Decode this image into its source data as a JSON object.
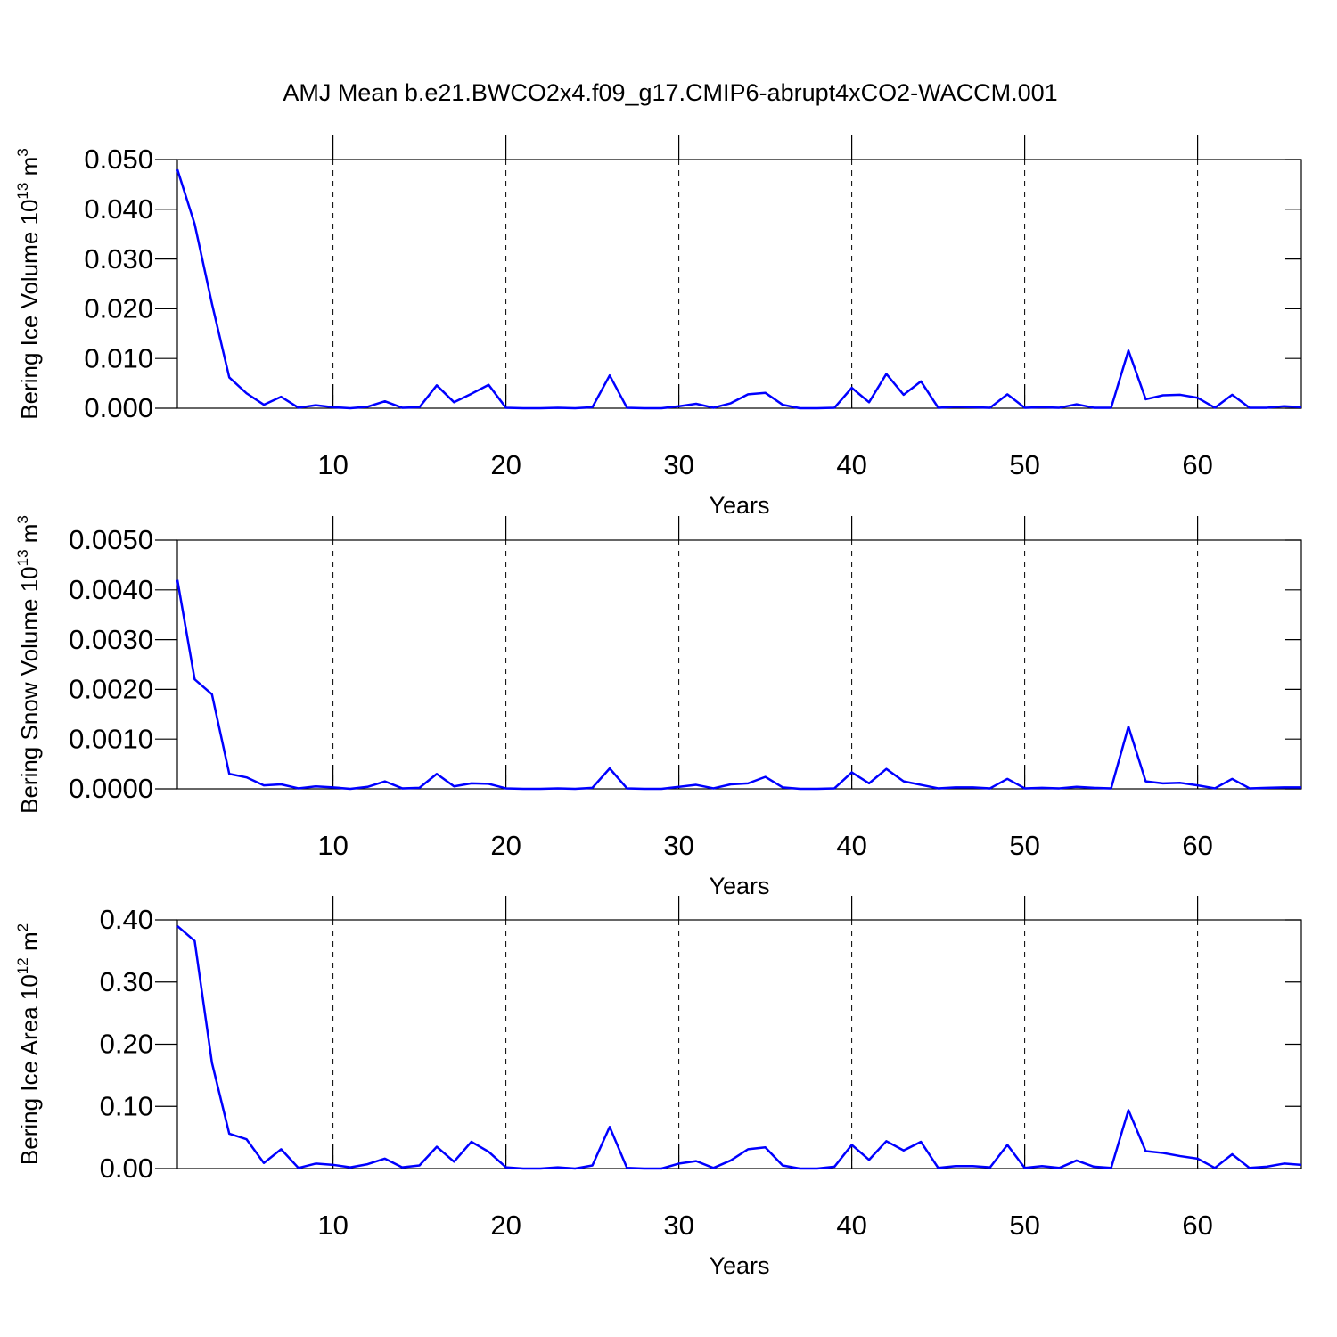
{
  "title": "AMJ Mean b.e21.BWCO2x4.f09_g17.CMIP6-abrupt4xCO2-WACCM.001",
  "chart_data": [
    {
      "type": "line",
      "x": [
        1,
        2,
        3,
        4,
        5,
        6,
        7,
        8,
        9,
        10,
        11,
        12,
        13,
        14,
        15,
        16,
        17,
        18,
        19,
        20,
        21,
        22,
        23,
        24,
        25,
        26,
        27,
        28,
        29,
        30,
        31,
        32,
        33,
        34,
        35,
        36,
        37,
        38,
        39,
        40,
        41,
        42,
        43,
        44,
        45,
        46,
        47,
        48,
        49,
        50,
        51,
        52,
        53,
        54,
        55,
        56,
        57,
        58,
        59,
        60,
        61,
        62,
        63,
        64,
        65,
        66
      ],
      "values": [
        0.048,
        0.037,
        0.021,
        0.0062,
        0.003,
        0.0007,
        0.0023,
        0.0001,
        0.0006,
        0.0002,
        0.0,
        0.0003,
        0.0014,
        0.0001,
        0.0002,
        0.0046,
        0.0012,
        0.0029,
        0.0047,
        0.0001,
        0.0,
        0.0,
        0.0001,
        0.0,
        0.0002,
        0.0066,
        0.0001,
        0.0,
        0.0,
        0.0004,
        0.0009,
        0.0001,
        0.001,
        0.0028,
        0.0031,
        0.0007,
        0.0,
        0.0,
        0.0001,
        0.0041,
        0.0012,
        0.0069,
        0.0027,
        0.0054,
        0.0001,
        0.0003,
        0.0002,
        0.0001,
        0.0028,
        0.0001,
        0.0002,
        0.0001,
        0.0008,
        0.0001,
        0.0001,
        0.0116,
        0.0018,
        0.0026,
        0.0027,
        0.0021,
        0.0001,
        0.0027,
        0.0001,
        0.0001,
        0.0004,
        0.0002
      ],
      "color": "#0000ff",
      "xlim": [
        1,
        66
      ],
      "xticks": [
        10,
        20,
        30,
        40,
        50,
        60
      ],
      "xlabel": "Years",
      "ylabel": {
        "text": "Bering Ice Volume 10",
        "exponent": "13",
        "unit": " m",
        "unit_exponent": "3"
      },
      "ylim": [
        0,
        0.05
      ],
      "yticks": [
        {
          "value": 0,
          "label": "0.000"
        },
        {
          "value": 0.01,
          "label": "0.010"
        },
        {
          "value": 0.02,
          "label": "0.020"
        },
        {
          "value": 0.03,
          "label": "0.030"
        },
        {
          "value": 0.04,
          "label": "0.040"
        },
        {
          "value": 0.05,
          "label": "0.050"
        }
      ],
      "grid": true
    },
    {
      "type": "line",
      "x": [
        1,
        2,
        3,
        4,
        5,
        6,
        7,
        8,
        9,
        10,
        11,
        12,
        13,
        14,
        15,
        16,
        17,
        18,
        19,
        20,
        21,
        22,
        23,
        24,
        25,
        26,
        27,
        28,
        29,
        30,
        31,
        32,
        33,
        34,
        35,
        36,
        37,
        38,
        39,
        40,
        41,
        42,
        43,
        44,
        45,
        46,
        47,
        48,
        49,
        50,
        51,
        52,
        53,
        54,
        55,
        56,
        57,
        58,
        59,
        60,
        61,
        62,
        63,
        64,
        65,
        66
      ],
      "values": [
        0.0042,
        0.0022,
        0.0019,
        0.0003,
        0.00023,
        7e-05,
        9e-05,
        1e-05,
        5e-05,
        3e-05,
        0.0,
        4e-05,
        0.00015,
        1e-05,
        2e-05,
        0.0003,
        5e-05,
        0.00011,
        0.0001,
        1e-05,
        0.0,
        0.0,
        1e-05,
        0.0,
        2e-05,
        0.00041,
        1e-05,
        0.0,
        0.0,
        4e-05,
        8e-05,
        1e-05,
        9e-05,
        0.00011,
        0.00024,
        3e-05,
        0.0,
        0.0,
        1e-05,
        0.00033,
        0.00011,
        0.0004,
        0.00015,
        8e-05,
        1e-05,
        3e-05,
        3e-05,
        1e-05,
        0.0002,
        1e-05,
        2e-05,
        1e-05,
        4e-05,
        2e-05,
        1e-05,
        0.00125,
        0.00015,
        0.00011,
        0.00012,
        7e-05,
        1e-05,
        0.0002,
        1e-05,
        2e-05,
        3e-05,
        3e-05
      ],
      "color": "#0000ff",
      "xlim": [
        1,
        66
      ],
      "xticks": [
        10,
        20,
        30,
        40,
        50,
        60
      ],
      "xlabel": "Years",
      "ylabel": {
        "text": "Bering Snow Volume 10",
        "exponent": "13",
        "unit": " m",
        "unit_exponent": "3"
      },
      "ylim": [
        0,
        0.005
      ],
      "yticks": [
        {
          "value": 0,
          "label": "0.0000"
        },
        {
          "value": 0.001,
          "label": "0.0010"
        },
        {
          "value": 0.002,
          "label": "0.0020"
        },
        {
          "value": 0.003,
          "label": "0.0030"
        },
        {
          "value": 0.004,
          "label": "0.0040"
        },
        {
          "value": 0.005,
          "label": "0.0050"
        }
      ],
      "grid": true
    },
    {
      "type": "line",
      "x": [
        1,
        2,
        3,
        4,
        5,
        6,
        7,
        8,
        9,
        10,
        11,
        12,
        13,
        14,
        15,
        16,
        17,
        18,
        19,
        20,
        21,
        22,
        23,
        24,
        25,
        26,
        27,
        28,
        29,
        30,
        31,
        32,
        33,
        34,
        35,
        36,
        37,
        38,
        39,
        40,
        41,
        42,
        43,
        44,
        45,
        46,
        47,
        48,
        49,
        50,
        51,
        52,
        53,
        54,
        55,
        56,
        57,
        58,
        59,
        60,
        61,
        62,
        63,
        64,
        65,
        66
      ],
      "values": [
        0.39,
        0.366,
        0.17,
        0.056,
        0.047,
        0.009,
        0.031,
        0.001,
        0.008,
        0.006,
        0.002,
        0.007,
        0.016,
        0.002,
        0.005,
        0.035,
        0.011,
        0.043,
        0.027,
        0.002,
        0.0,
        0.0,
        0.002,
        0.0,
        0.005,
        0.067,
        0.001,
        0.0,
        0.0,
        0.008,
        0.012,
        0.001,
        0.013,
        0.031,
        0.034,
        0.005,
        0.0,
        0.0,
        0.003,
        0.038,
        0.014,
        0.044,
        0.029,
        0.043,
        0.001,
        0.004,
        0.004,
        0.002,
        0.038,
        0.001,
        0.004,
        0.001,
        0.013,
        0.003,
        0.001,
        0.094,
        0.028,
        0.025,
        0.02,
        0.016,
        0.001,
        0.023,
        0.001,
        0.003,
        0.008,
        0.006
      ],
      "color": "#0000ff",
      "xlim": [
        1,
        66
      ],
      "xticks": [
        10,
        20,
        30,
        40,
        50,
        60
      ],
      "xlabel": "Years",
      "ylabel": {
        "text": "Bering Ice Area 10",
        "exponent": "12",
        "unit": " m",
        "unit_exponent": "2"
      },
      "ylim": [
        0,
        0.4
      ],
      "yticks": [
        {
          "value": 0,
          "label": "0.00"
        },
        {
          "value": 0.1,
          "label": "0.10"
        },
        {
          "value": 0.2,
          "label": "0.20"
        },
        {
          "value": 0.3,
          "label": "0.30"
        },
        {
          "value": 0.4,
          "label": "0.40"
        }
      ],
      "grid": true
    }
  ]
}
